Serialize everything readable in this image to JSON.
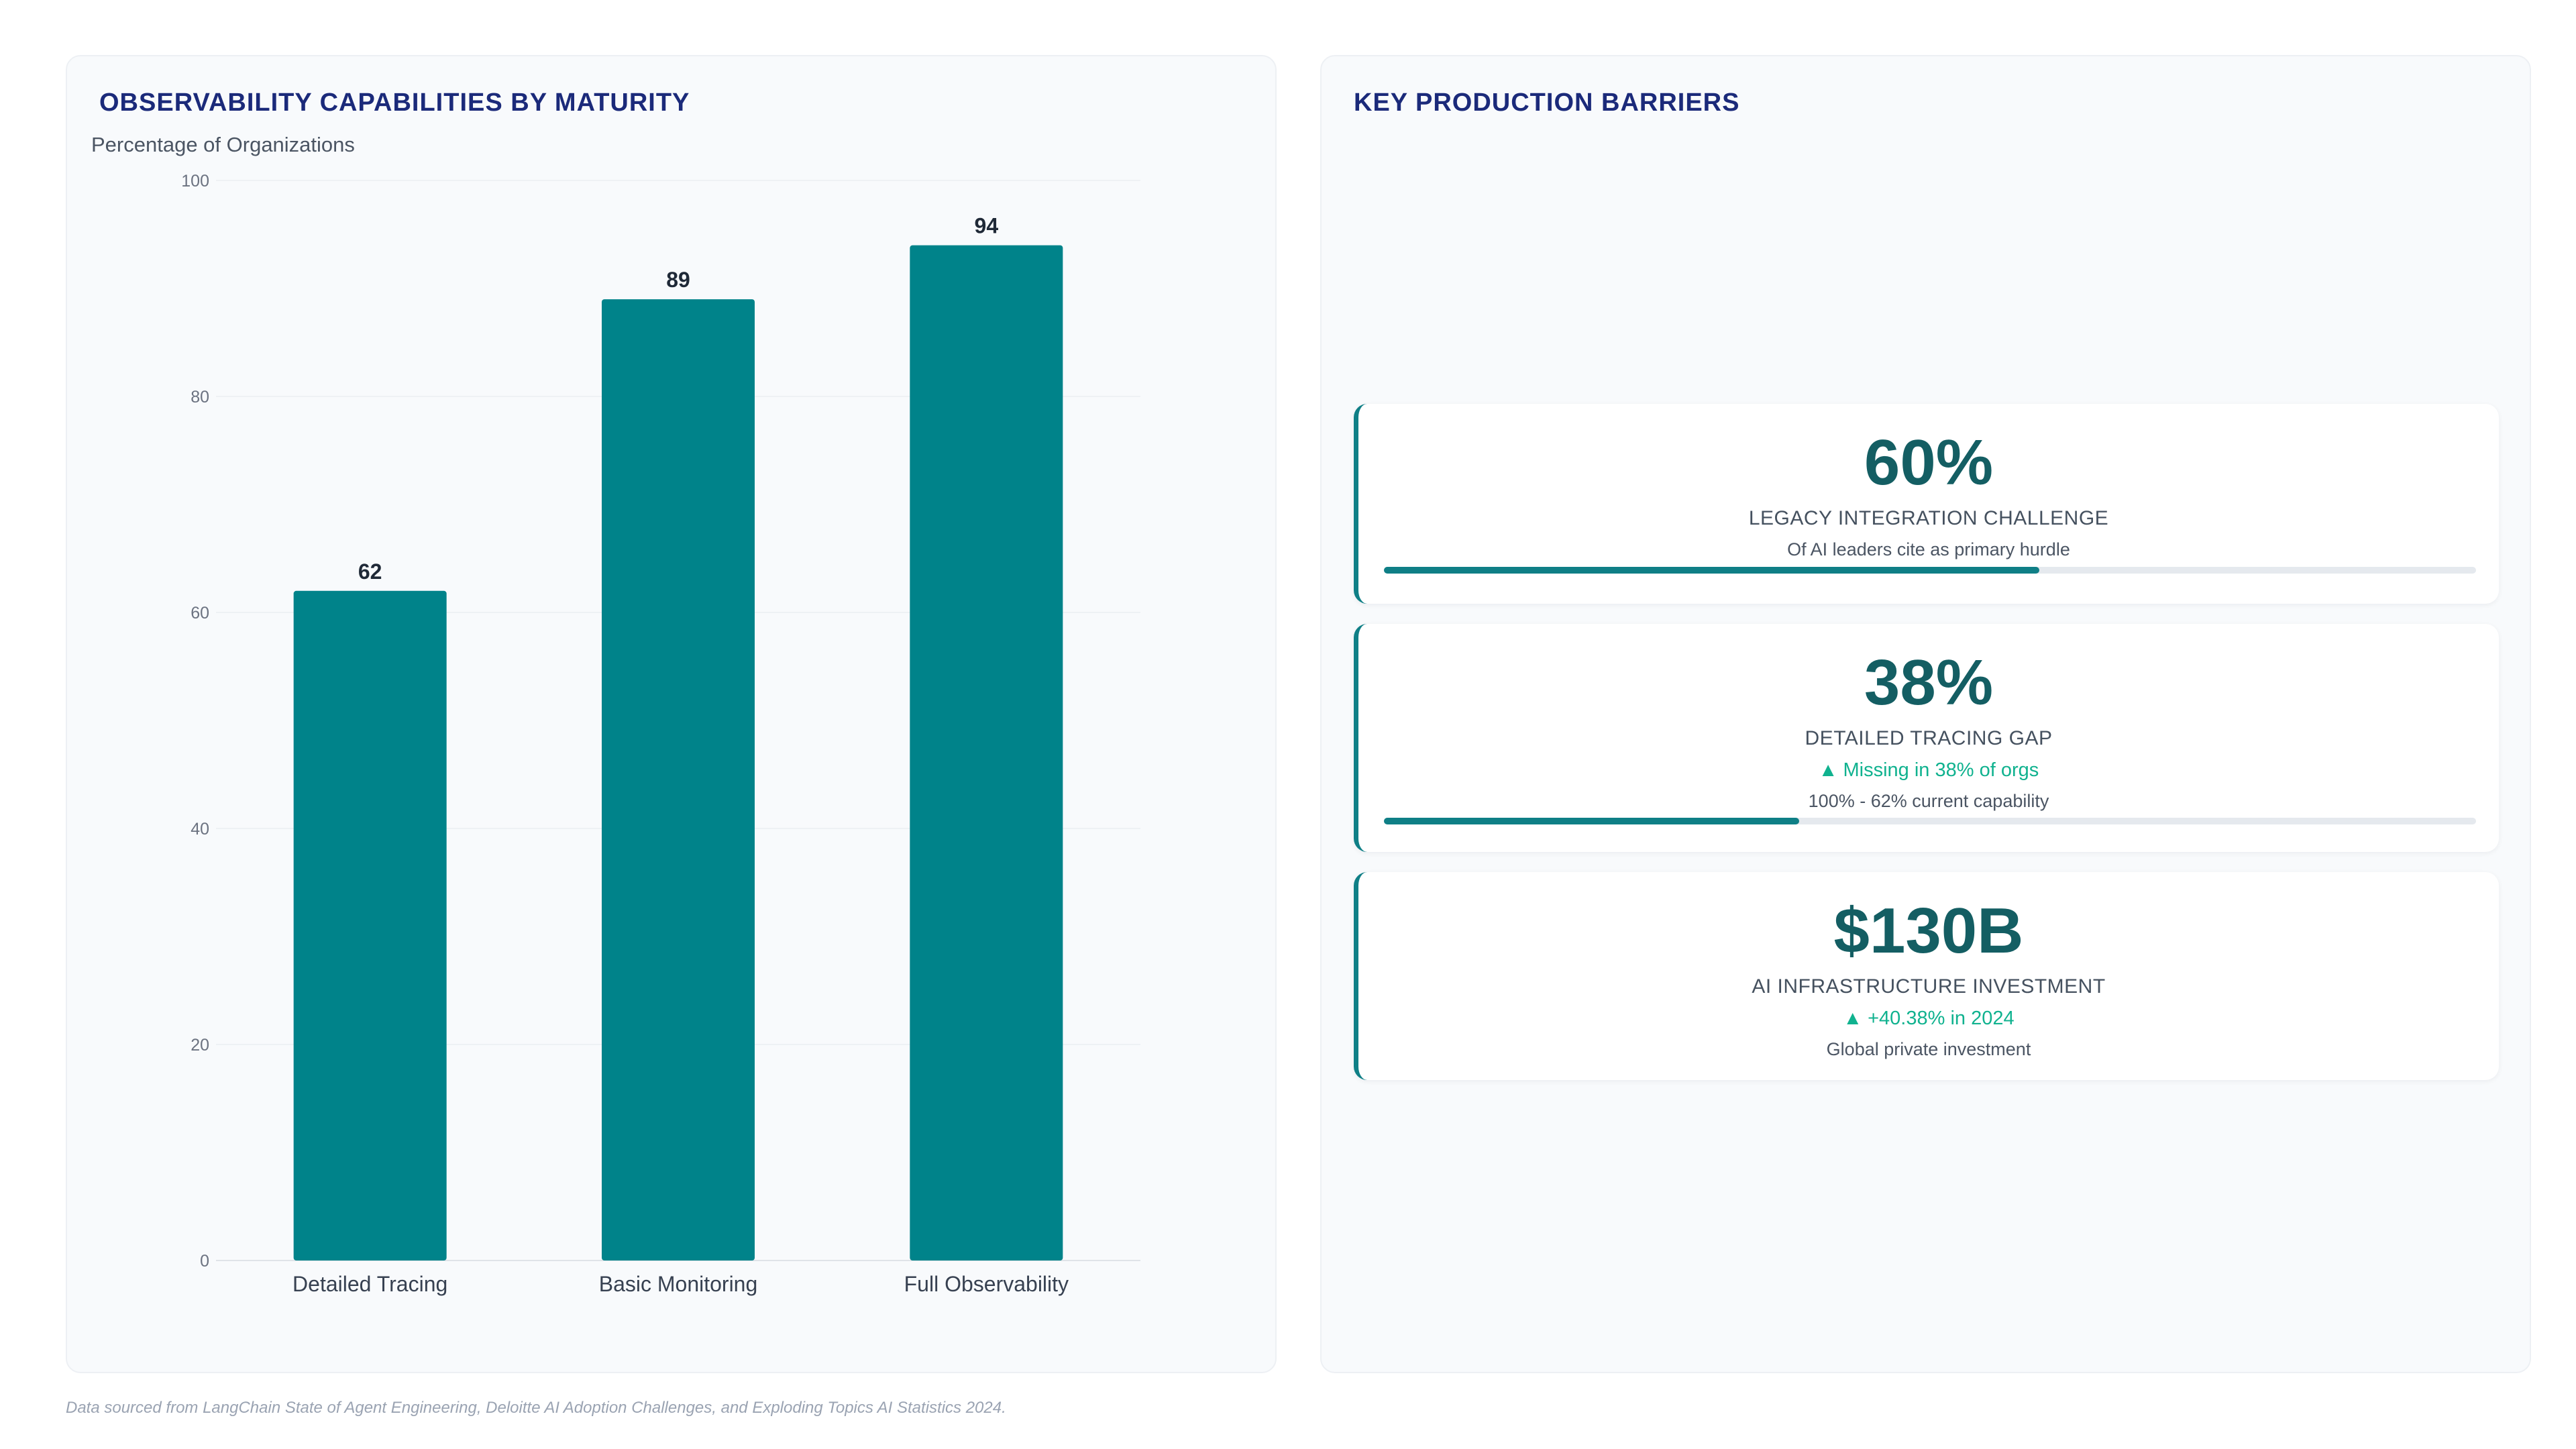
{
  "left_panel": {
    "title": "OBSERVABILITY CAPABILITIES BY MATURITY"
  },
  "chart_data": {
    "type": "bar",
    "ylabel": "Percentage of Organizations",
    "categories": [
      "Detailed Tracing",
      "Basic Monitoring",
      "Full Observability"
    ],
    "values": [
      62,
      89,
      94
    ],
    "ylim": [
      0,
      100
    ],
    "yticks": [
      "0",
      "20",
      "40",
      "60",
      "80",
      "100"
    ],
    "grid": true,
    "bar_color": "#00838a",
    "data_labels": [
      "62",
      "89",
      "94"
    ]
  },
  "right_panel": {
    "title": "KEY PRODUCTION BARRIERS",
    "cards": [
      {
        "value": "60%",
        "label": "LEGACY INTEGRATION CHALLENGE",
        "trend": "",
        "sub": "Of AI leaders cite as primary hurdle",
        "progress": 0.6
      },
      {
        "value": "38%",
        "label": "DETAILED TRACING GAP",
        "trend": "▲ Missing in 38% of orgs",
        "sub": "100% - 62% current capability",
        "progress": 0.38
      },
      {
        "value": "$130B",
        "label": "AI INFRASTRUCTURE INVESTMENT",
        "trend": "▲ +40.38% in 2024",
        "sub": "Global private investment",
        "progress": null
      }
    ]
  },
  "footer": {
    "note": "Data sourced from LangChain State of Agent Engineering, Deloitte AI Adoption Challenges, and Exploding Topics AI Statistics 2024."
  },
  "colors": {
    "accent": "#0f7f86",
    "title": "#1b2a7a",
    "trend": "#10b28f"
  }
}
